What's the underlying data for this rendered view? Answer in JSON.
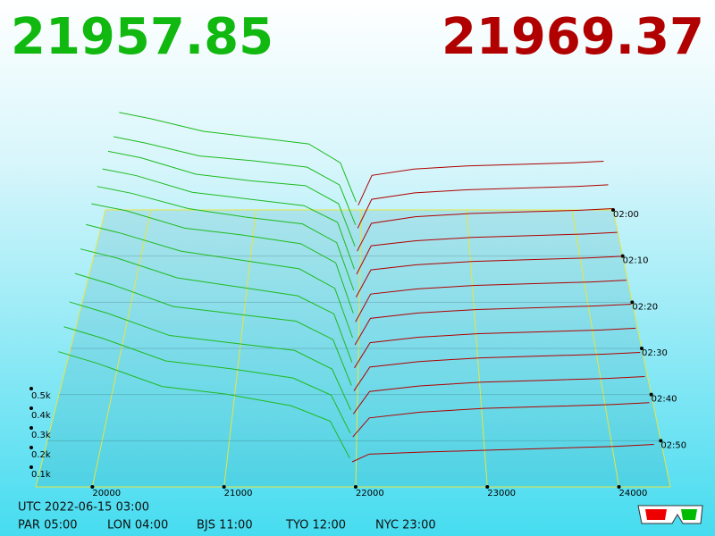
{
  "chart_data": {
    "type": "depth3d",
    "bid_price": 21957.85,
    "ask_price": 21969.37,
    "bid_color": "#1fba1f",
    "ask_color": "#b00000",
    "xlim": [
      19570,
      24390
    ],
    "zlim": [
      120,
      180
    ],
    "xticks": [
      20000,
      21000,
      22000,
      23000,
      24000
    ],
    "yticks": [
      {
        "value": 0.1,
        "label": "0.1k"
      },
      {
        "value": 0.2,
        "label": "0.2k"
      },
      {
        "value": 0.3,
        "label": "0.3k"
      },
      {
        "value": 0.4,
        "label": "0.4k"
      },
      {
        "value": 0.5,
        "label": "0.5k"
      }
    ],
    "zticks": [
      {
        "value": 120,
        "label": "02:00"
      },
      {
        "value": 130,
        "label": "02:10"
      },
      {
        "value": 140,
        "label": "02:20"
      },
      {
        "value": 150,
        "label": "02:30"
      },
      {
        "value": 160,
        "label": "02:40"
      },
      {
        "value": 170,
        "label": "02:50"
      }
    ],
    "bid_prices": [
      19700,
      20000,
      20500,
      21000,
      21500,
      21800,
      21950
    ],
    "ask_prices": [
      21970,
      22100,
      22500,
      23000,
      23500,
      24000,
      24300
    ],
    "snapshots": [
      {
        "time": 120,
        "bids": [
          0.62,
          0.58,
          0.5,
          0.46,
          0.42,
          0.3,
          0.05
        ],
        "asks": [
          0.03,
          0.22,
          0.26,
          0.28,
          0.29,
          0.3,
          0.31
        ]
      },
      {
        "time": 125,
        "bids": [
          0.6,
          0.56,
          0.48,
          0.45,
          0.41,
          0.3,
          0.05
        ],
        "asks": [
          0.03,
          0.21,
          0.25,
          0.27,
          0.28,
          0.29,
          0.3
        ]
      },
      {
        "time": 130,
        "bids": [
          0.64,
          0.6,
          0.5,
          0.46,
          0.43,
          0.32,
          0.06
        ],
        "asks": [
          0.03,
          0.2,
          0.24,
          0.26,
          0.27,
          0.28,
          0.29
        ]
      },
      {
        "time": 135,
        "bids": [
          0.66,
          0.62,
          0.52,
          0.48,
          0.44,
          0.34,
          0.06
        ],
        "asks": [
          0.03,
          0.2,
          0.23,
          0.25,
          0.26,
          0.27,
          0.28
        ]
      },
      {
        "time": 140,
        "bids": [
          0.68,
          0.64,
          0.55,
          0.5,
          0.46,
          0.35,
          0.07
        ],
        "asks": [
          0.03,
          0.19,
          0.22,
          0.24,
          0.25,
          0.26,
          0.27
        ]
      },
      {
        "time": 145,
        "bids": [
          0.7,
          0.66,
          0.56,
          0.52,
          0.47,
          0.36,
          0.07
        ],
        "asks": [
          0.02,
          0.18,
          0.21,
          0.23,
          0.24,
          0.25,
          0.26
        ]
      },
      {
        "time": 150,
        "bids": [
          0.7,
          0.65,
          0.55,
          0.5,
          0.45,
          0.34,
          0.06
        ],
        "asks": [
          0.02,
          0.17,
          0.2,
          0.22,
          0.23,
          0.24,
          0.25
        ]
      },
      {
        "time": 155,
        "bids": [
          0.68,
          0.63,
          0.52,
          0.47,
          0.42,
          0.32,
          0.05
        ],
        "asks": [
          0.02,
          0.16,
          0.19,
          0.21,
          0.22,
          0.23,
          0.24
        ]
      },
      {
        "time": 160,
        "bids": [
          0.66,
          0.6,
          0.48,
          0.44,
          0.4,
          0.3,
          0.05
        ],
        "asks": [
          0.02,
          0.15,
          0.18,
          0.2,
          0.21,
          0.22,
          0.23
        ]
      },
      {
        "time": 165,
        "bids": [
          0.62,
          0.56,
          0.44,
          0.4,
          0.36,
          0.26,
          0.04
        ],
        "asks": [
          0.02,
          0.14,
          0.17,
          0.19,
          0.2,
          0.21,
          0.22
        ]
      },
      {
        "time": 170,
        "bids": [
          0.6,
          0.54,
          0.42,
          0.38,
          0.33,
          0.24,
          0.04
        ],
        "asks": [
          0.02,
          0.12,
          0.15,
          0.17,
          0.18,
          0.19,
          0.2
        ]
      },
      {
        "time": 175,
        "bids": [
          0.58,
          0.52,
          0.4,
          0.36,
          0.3,
          0.22,
          0.03
        ],
        "asks": [
          0.01,
          0.05,
          0.06,
          0.07,
          0.08,
          0.09,
          0.1
        ]
      }
    ],
    "footer": {
      "utc": "UTC 2022-06-15 03:00",
      "zones": [
        "PAR 05:00",
        "LON 04:00",
        "BJS 11:00",
        "TYO 12:00",
        "NYC 23:00"
      ]
    }
  }
}
